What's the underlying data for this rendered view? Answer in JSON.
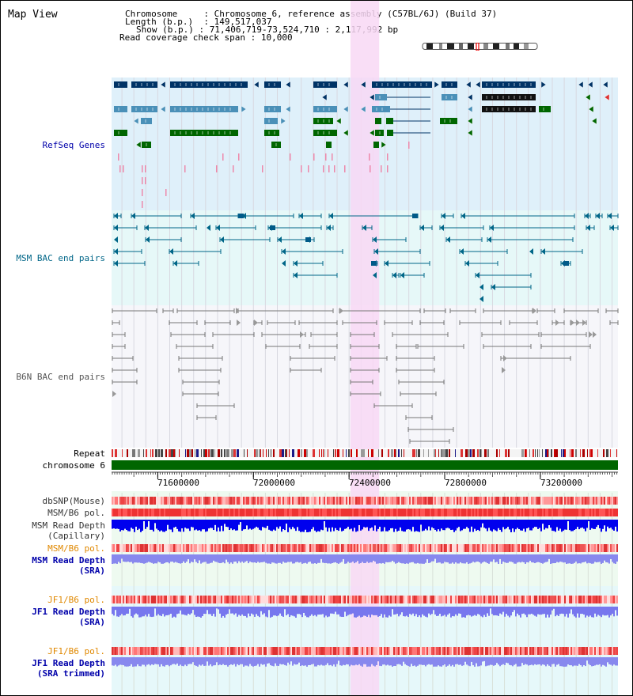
{
  "view": {
    "title": "Map View",
    "info": {
      "chromosome_key": "Chromosome",
      "chromosome_value": "Chromosome 6, reference assembly (C57BL/6J) (Build 37)",
      "length_key": "Length (b.p.)",
      "length_value": "149,517,037",
      "show_key": "Show (b.p.)",
      "show_value": "71,406,719-73,524,710 : 2,117,992 bp",
      "span_key": "Read coverage check span",
      "span_value": "10,000"
    }
  },
  "axis": {
    "start": 71406719,
    "end": 73524710,
    "ticks": [
      "71600000",
      "72000000",
      "72400000",
      "72800000",
      "73200000"
    ],
    "tick_values": [
      71600000,
      72000000,
      72400000,
      72800000,
      73200000
    ]
  },
  "highlight": {
    "start": 72406000,
    "end": 72526000,
    "color": "#f8d8f4"
  },
  "tracks": {
    "refseq": "RefSeq Genes",
    "msm_bac": "MSM BAC end pairs",
    "b6n_bac": "B6N BAC end pairs",
    "repeat": "Repeat",
    "chromosome": "chromosome 6",
    "dbsnp": "dbSNP(Mouse)",
    "msm_b6_pol_1": "MSM/B6 pol.",
    "msm_depth_cap_1": "MSM Read Depth",
    "msm_depth_cap_2": "(Capillary)",
    "msm_b6_pol_2": "MSM/B6 pol.",
    "msm_depth_sra_1": "MSM Read Depth",
    "msm_depth_sra_2": "(SRA)",
    "jf1_b6_pol_1": "JF1/B6 pol.",
    "jf1_depth_sra_1": "JF1 Read Depth",
    "jf1_depth_sra_2": "(SRA)",
    "jf1_b6_pol_2": "JF1/B6 pol.",
    "jf1_depth_trim_1": "JF1 Read Depth",
    "jf1_depth_trim_2": "(SRA trimmed)"
  },
  "colors": {
    "refseq_label": "#0000aa",
    "msm_bac_label": "#006688",
    "b6n_label": "#555555",
    "orange_label": "#e08800",
    "blue_label": "#0000aa",
    "gene_dark": "#003366",
    "gene_mid": "#4a90b8",
    "gene_green": "#006600",
    "depth_dark": "#0000dd",
    "depth_light": "#7777ee"
  }
}
